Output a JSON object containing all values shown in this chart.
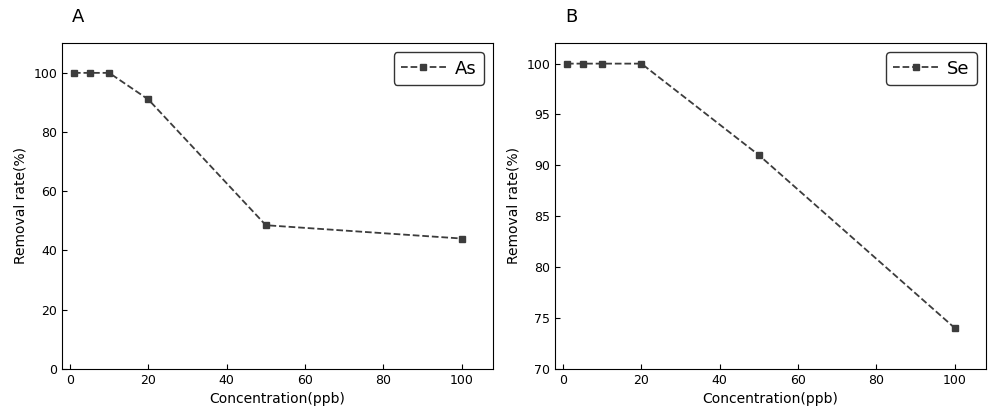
{
  "panel_A": {
    "label": "A",
    "x": [
      1,
      5,
      10,
      20,
      50,
      100
    ],
    "y": [
      100,
      100,
      100,
      91,
      48.5,
      44
    ],
    "xlabel": "Concentration(ppb)",
    "ylabel": "Removal rate(%)",
    "legend_label": "As",
    "xlim": [
      -2,
      108
    ],
    "ylim": [
      0,
      110
    ],
    "yticks": [
      0,
      20,
      40,
      60,
      80,
      100
    ],
    "xticks": [
      0,
      20,
      40,
      60,
      80,
      100
    ]
  },
  "panel_B": {
    "label": "B",
    "x": [
      1,
      5,
      10,
      20,
      50,
      100
    ],
    "y": [
      100,
      100,
      100,
      100,
      91,
      74
    ],
    "xlabel": "Concentration(ppb)",
    "ylabel": "Removal rate(%)",
    "legend_label": "Se",
    "xlim": [
      -2,
      108
    ],
    "ylim": [
      70,
      102
    ],
    "yticks": [
      70,
      75,
      80,
      85,
      90,
      95,
      100
    ],
    "xticks": [
      0,
      20,
      40,
      60,
      80,
      100
    ]
  },
  "line_color": "#3c3c3c",
  "marker": "s",
  "marker_size": 5,
  "marker_color": "#3c3c3c",
  "line_style": "--",
  "line_width": 1.3,
  "background_color": "#ffffff",
  "label_fontsize": 10,
  "tick_fontsize": 9,
  "legend_fontsize": 13,
  "panel_label_fontsize": 13
}
